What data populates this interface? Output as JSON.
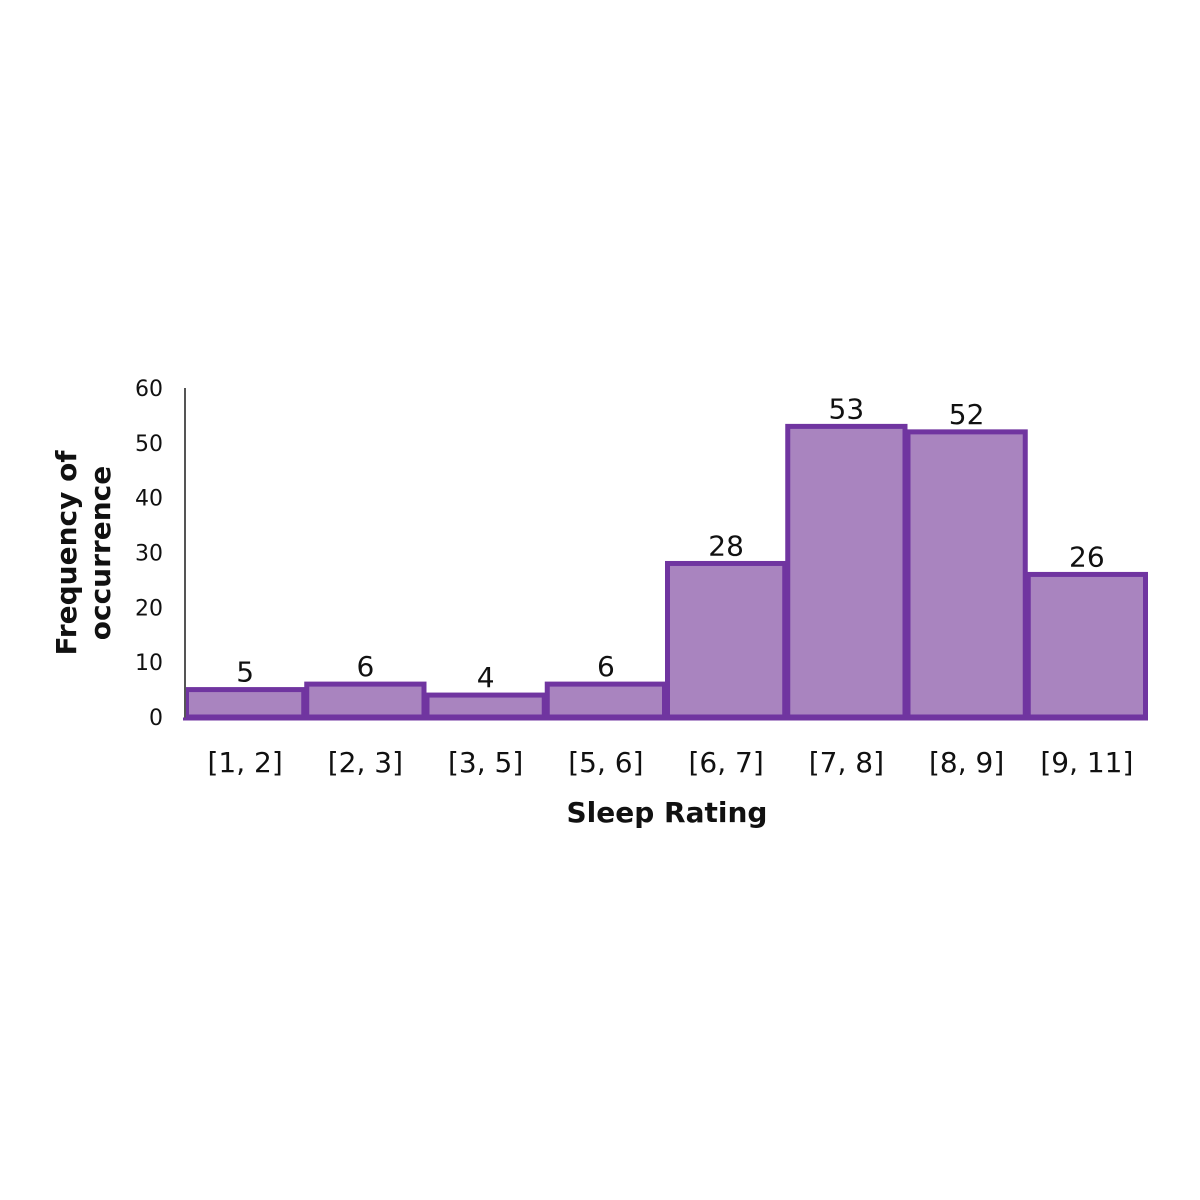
{
  "chart_data": {
    "type": "bar",
    "xlabel": "Sleep Rating",
    "ylabel_lines": [
      "Frequency of",
      "occurrence"
    ],
    "categories": [
      "[1, 2]",
      "[2, 3]",
      "[3, 5]",
      "[5, 6]",
      "[6, 7]",
      "[7, 8]",
      "[8, 9]",
      "[9, 11]"
    ],
    "values": [
      5,
      6,
      4,
      6,
      28,
      53,
      52,
      26
    ],
    "ylim": [
      0,
      60
    ],
    "yticks": [
      0,
      10,
      20,
      30,
      40,
      50,
      60
    ],
    "grid": false,
    "legend": "none",
    "colors": {
      "bar_fill": "#a984bf",
      "bar_stroke": "#7035a0",
      "axis": "#555555"
    }
  }
}
